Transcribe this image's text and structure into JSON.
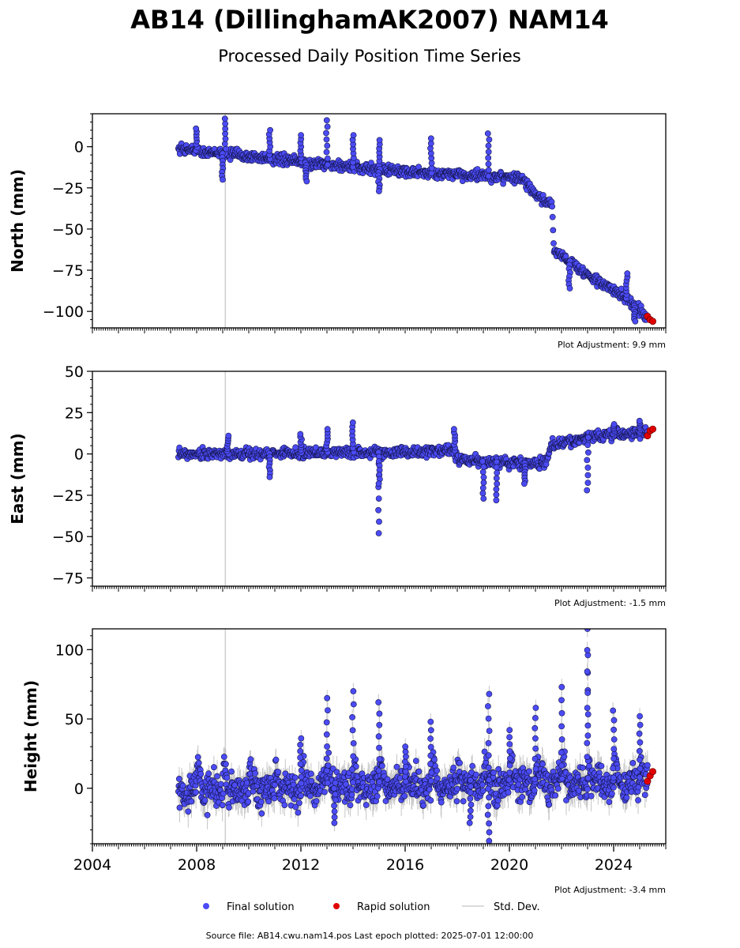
{
  "title": "AB14 (DillinghamAK2007) NAM14",
  "subtitle": "Processed Daily Position Time Series",
  "legend": {
    "final": "Final solution",
    "rapid": "Rapid solution",
    "std": "Std. Dev."
  },
  "footer": "Source file: AB14.cwu.nam14.pos  Last epoch plotted: 2025-07-01 12:00:00",
  "colors": {
    "final": "#4b4bf5",
    "rapid": "#e00000",
    "std": "#b8b8b8",
    "vline": "#cfcfcf"
  },
  "chart_data": [
    {
      "type": "scatter",
      "ylabel": "North (mm)",
      "adjustment": "Plot Adjustment: 9.9 mm",
      "xlim": [
        2004.0,
        2026.0
      ],
      "ylim": [
        -110,
        20
      ],
      "yticks": [
        0,
        -25,
        -50,
        -75,
        -100
      ],
      "reference_line_x": 2009.1,
      "x_start": 2007.3,
      "x_end_final": 2025.3,
      "series": [
        {
          "name": "Final solution",
          "trend_x": [
            2007.3,
            2010.0,
            2013.0,
            2016.0,
            2018.0,
            2020.5,
            2021.0,
            2021.65,
            2021.7,
            2023.0,
            2024.5,
            2025.3
          ],
          "trend_y": [
            -1,
            -6,
            -11,
            -15,
            -17,
            -19,
            -30,
            -36,
            -62,
            -78,
            -92,
            -104
          ],
          "spikes": [
            [
              2008.0,
              11
            ],
            [
              2009.1,
              17
            ],
            [
              2009.0,
              -20
            ],
            [
              2010.8,
              10
            ],
            [
              2012.0,
              7
            ],
            [
              2012.2,
              -21
            ],
            [
              2013.0,
              16
            ],
            [
              2014.0,
              7
            ],
            [
              2015.0,
              4
            ],
            [
              2017.0,
              5
            ],
            [
              2019.2,
              8
            ],
            [
              2015.0,
              -27
            ],
            [
              2022.3,
              -86
            ],
            [
              2024.5,
              -77
            ],
            [
              2024.8,
              -106
            ]
          ]
        },
        {
          "name": "Rapid solution",
          "x": [
            2025.3,
            2025.4,
            2025.5
          ],
          "y": [
            -103,
            -105,
            -106
          ]
        }
      ]
    },
    {
      "type": "scatter",
      "ylabel": "East (mm)",
      "adjustment": "Plot Adjustment: -1.5 mm",
      "xlim": [
        2004.0,
        2026.0
      ],
      "ylim": [
        -80,
        50
      ],
      "yticks": [
        50,
        25,
        0,
        -25,
        -50,
        -75
      ],
      "reference_line_x": 2009.1,
      "x_start": 2007.3,
      "x_end_final": 2025.3,
      "series": [
        {
          "name": "Final solution",
          "trend_x": [
            2007.3,
            2010.0,
            2013.0,
            2016.0,
            2017.9,
            2018.0,
            2020.0,
            2021.0,
            2021.4,
            2021.6,
            2023.0,
            2025.3
          ],
          "trend_y": [
            0,
            0,
            1,
            1,
            2,
            -4,
            -5,
            -6,
            -6,
            5,
            10,
            13
          ],
          "spikes": [
            [
              2009.2,
              11
            ],
            [
              2012.0,
              12
            ],
            [
              2013.0,
              15
            ],
            [
              2014.0,
              19
            ],
            [
              2015.0,
              -48
            ],
            [
              2015.0,
              -18
            ],
            [
              2017.9,
              15
            ],
            [
              2019.0,
              -27
            ],
            [
              2019.5,
              -28
            ],
            [
              2020.6,
              -18
            ],
            [
              2023.0,
              -22
            ],
            [
              2024.0,
              18
            ],
            [
              2025.0,
              20
            ],
            [
              2010.8,
              -14
            ]
          ]
        },
        {
          "name": "Rapid solution",
          "x": [
            2025.3,
            2025.4,
            2025.5
          ],
          "y": [
            11,
            14,
            15
          ]
        }
      ]
    },
    {
      "type": "scatter",
      "ylabel": "Height (mm)",
      "adjustment": "Plot Adjustment: -3.4 mm",
      "xlim": [
        2004.0,
        2026.0
      ],
      "ylim": [
        -40,
        115
      ],
      "yticks": [
        100,
        50,
        0
      ],
      "xticks": [
        2004,
        2008,
        2012,
        2016,
        2020,
        2024
      ],
      "reference_line_x": 2009.1,
      "x_start": 2007.3,
      "x_end_final": 2025.3,
      "series": [
        {
          "name": "Final solution",
          "trend_x": [
            2007.3,
            2025.3
          ],
          "trend_y": [
            2,
            8
          ],
          "spikes": [
            [
              2013.0,
              65
            ],
            [
              2014.0,
              70
            ],
            [
              2015.0,
              62
            ],
            [
              2019.2,
              68
            ],
            [
              2021.0,
              58
            ],
            [
              2022.0,
              73
            ],
            [
              2023.0,
              96
            ],
            [
              2023.0,
              115
            ],
            [
              2024.0,
              56
            ],
            [
              2025.0,
              52
            ],
            [
              2019.2,
              -38
            ],
            [
              2018.5,
              -25
            ],
            [
              2013.3,
              -25
            ],
            [
              2012.0,
              36
            ],
            [
              2016.0,
              30
            ],
            [
              2017.0,
              48
            ],
            [
              2020.0,
              42
            ]
          ]
        },
        {
          "name": "Rapid solution",
          "x": [
            2025.3,
            2025.4,
            2025.5
          ],
          "y": [
            5,
            9,
            12
          ]
        }
      ]
    }
  ]
}
